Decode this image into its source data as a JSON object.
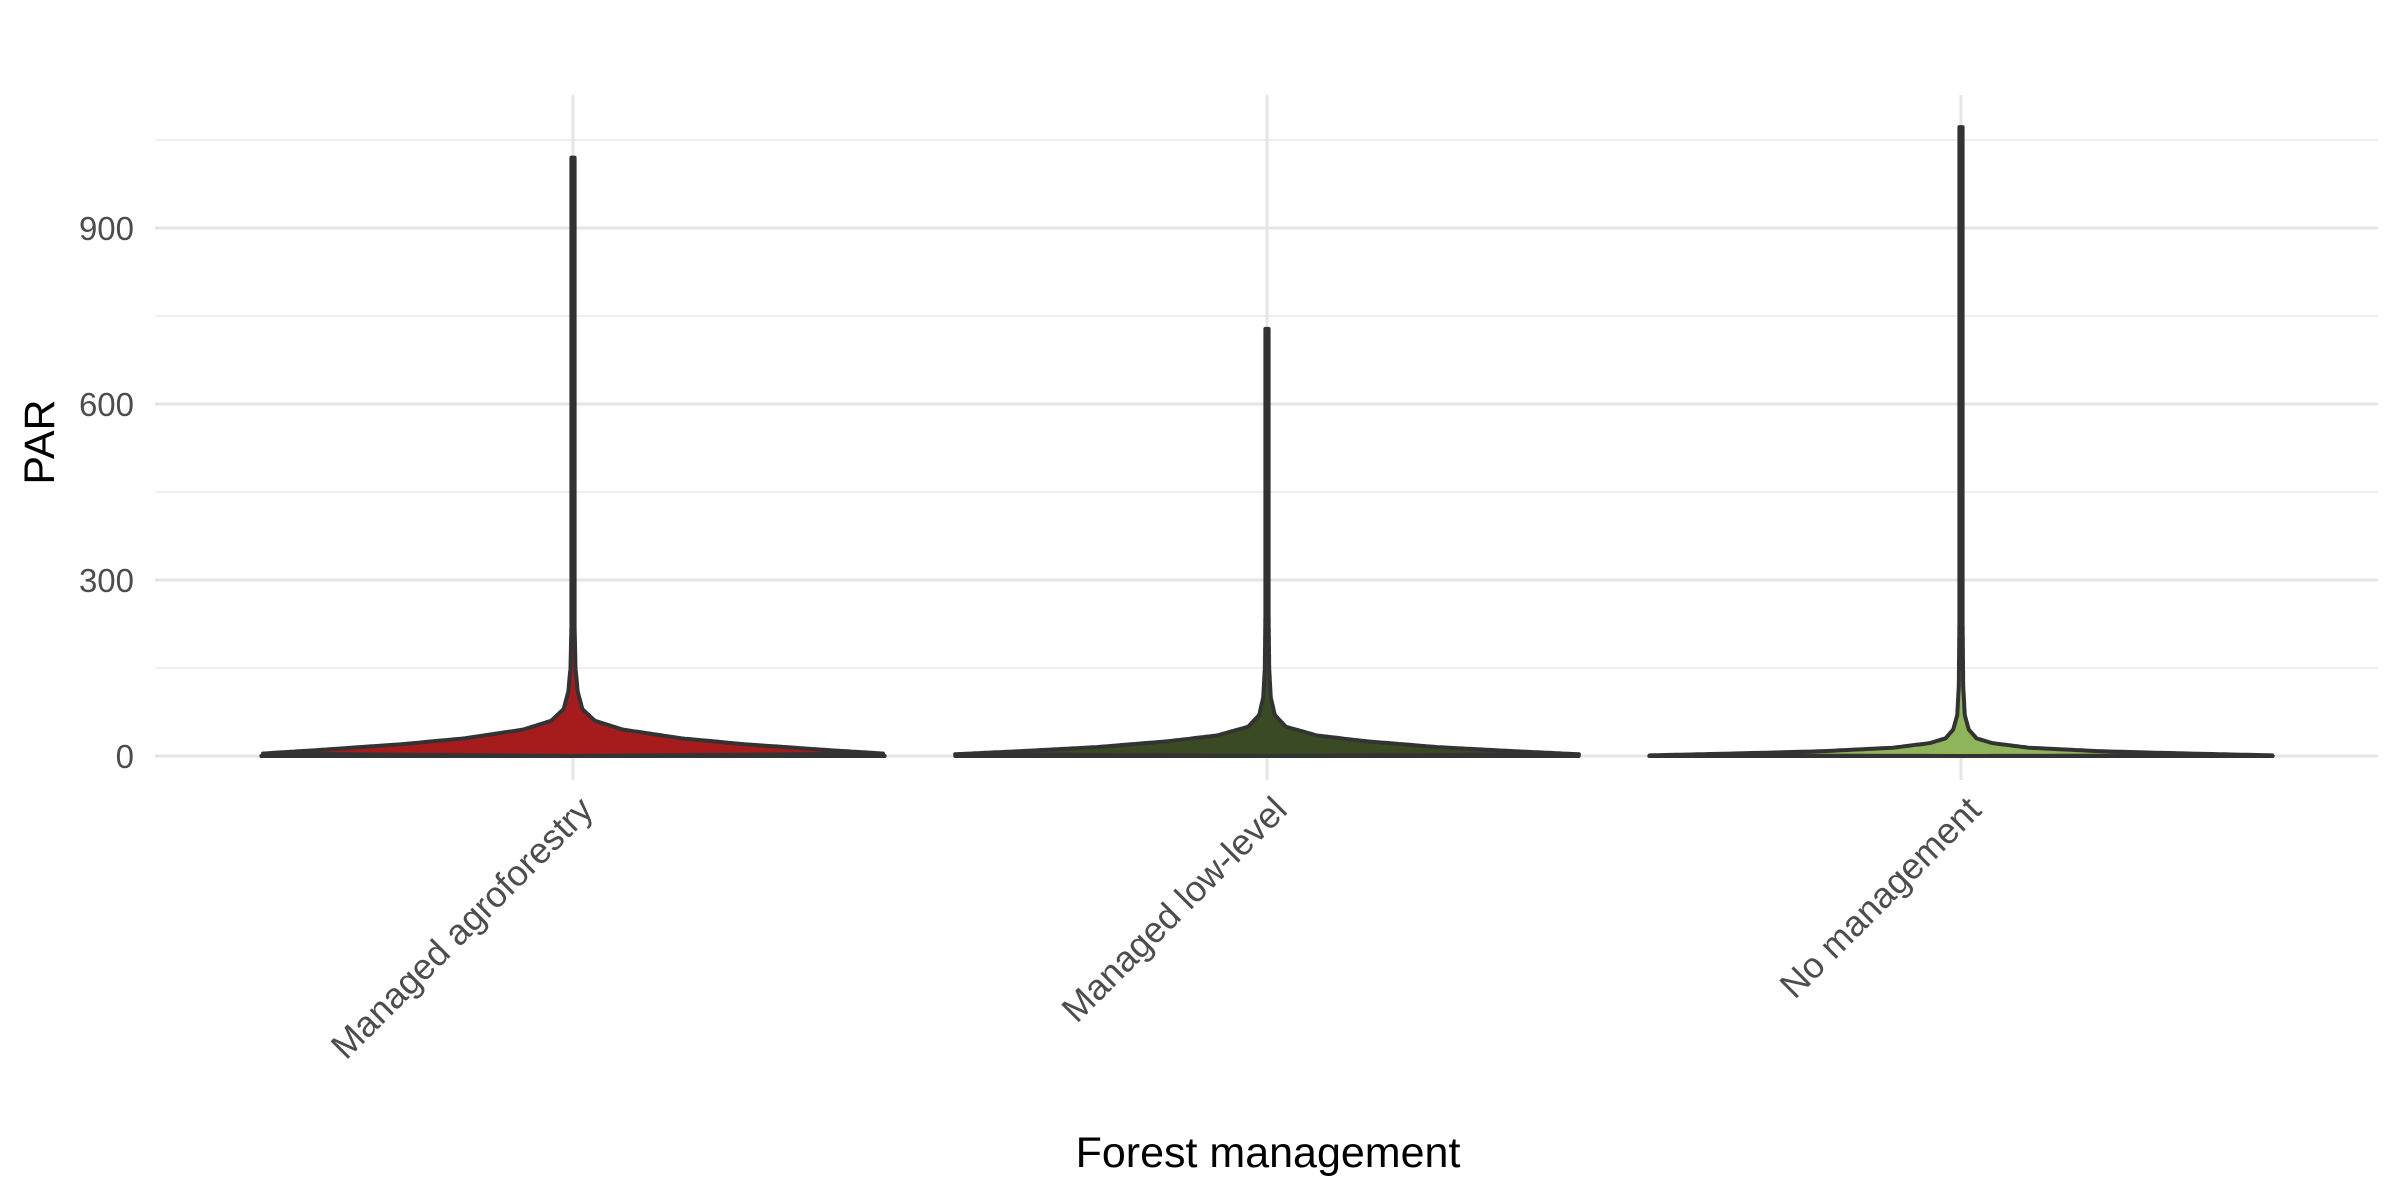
{
  "chart_data": {
    "type": "violin",
    "title": "",
    "xlabel": "Forest management",
    "ylabel": "PAR",
    "ylim": [
      -30,
      1130
    ],
    "y_ticks": [
      0,
      300,
      600,
      900
    ],
    "y_minor_ticks": [
      150,
      450,
      750,
      1050
    ],
    "grid": true,
    "legend": "none",
    "categories": [
      "Managed agroforestry",
      "Managed low-level",
      "No management"
    ],
    "series": [
      {
        "category": "Managed agroforestry",
        "color": "#A61C1C",
        "min": 0,
        "max": 1020,
        "profile": [
          [
            0,
            0.0
          ],
          [
            4,
            1.0
          ],
          [
            10,
            0.82
          ],
          [
            20,
            0.55
          ],
          [
            30,
            0.35
          ],
          [
            45,
            0.16
          ],
          [
            60,
            0.07
          ],
          [
            80,
            0.03
          ],
          [
            110,
            0.015
          ],
          [
            150,
            0.008
          ],
          [
            250,
            0.004
          ],
          [
            500,
            0.003
          ],
          [
            1020,
            0.002
          ]
        ]
      },
      {
        "category": "Managed low-level",
        "color": "#3A4A23",
        "min": 0,
        "max": 728,
        "profile": [
          [
            0,
            0.0
          ],
          [
            3,
            1.0
          ],
          [
            8,
            0.8
          ],
          [
            15,
            0.55
          ],
          [
            25,
            0.32
          ],
          [
            35,
            0.16
          ],
          [
            50,
            0.06
          ],
          [
            70,
            0.025
          ],
          [
            100,
            0.012
          ],
          [
            150,
            0.007
          ],
          [
            300,
            0.004
          ],
          [
            728,
            0.002
          ]
        ]
      },
      {
        "category": "No management",
        "color": "#8FB55A",
        "min": 0,
        "max": 1072,
        "profile": [
          [
            0,
            0.0
          ],
          [
            1,
            1.0
          ],
          [
            4,
            0.75
          ],
          [
            8,
            0.45
          ],
          [
            14,
            0.22
          ],
          [
            22,
            0.1
          ],
          [
            30,
            0.05
          ],
          [
            45,
            0.025
          ],
          [
            70,
            0.012
          ],
          [
            120,
            0.007
          ],
          [
            300,
            0.004
          ],
          [
            1072,
            0.002
          ]
        ]
      }
    ]
  }
}
